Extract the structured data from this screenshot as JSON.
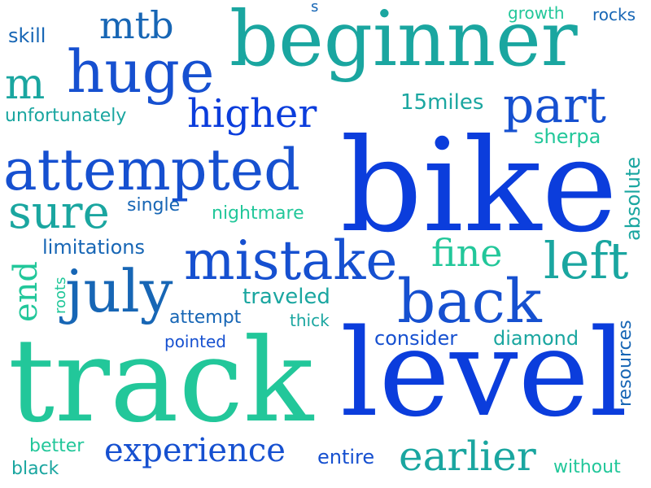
{
  "colors": {
    "blue": "#0b3ddc",
    "royal": "#1650d0",
    "steel": "#1766b5",
    "teal": "#1aa6a0",
    "mint": "#22c79a",
    "aqua": "#17b8a8"
  },
  "words": {
    "bike": {
      "text": "bike",
      "color": "#0b3ddc"
    },
    "track": {
      "text": "track",
      "color": "#22c79a"
    },
    "level": {
      "text": "level",
      "color": "#0b3ddc"
    },
    "beginner": {
      "text": "beginner",
      "color": "#1aa6a0"
    },
    "attempted": {
      "text": "attempted",
      "color": "#1650d0"
    },
    "huge": {
      "text": "huge",
      "color": "#1650d0"
    },
    "mistake": {
      "text": "mistake",
      "color": "#1650d0"
    },
    "back": {
      "text": "back",
      "color": "#1650d0"
    },
    "july": {
      "text": "july",
      "color": "#1766b5"
    },
    "left": {
      "text": "left",
      "color": "#1aa6a0"
    },
    "part": {
      "text": "part",
      "color": "#1650d0"
    },
    "sure": {
      "text": "sure",
      "color": "#1aa6a0"
    },
    "higher": {
      "text": "higher",
      "color": "#0b3ddc"
    },
    "earlier": {
      "text": "earlier",
      "color": "#1aa6a0"
    },
    "experience": {
      "text": "experience",
      "color": "#1650d0"
    },
    "m": {
      "text": "m",
      "color": "#1aa6a0"
    },
    "mtb": {
      "text": "mtb",
      "color": "#1766b5"
    },
    "fine": {
      "text": "fine",
      "color": "#22c79a"
    },
    "end": {
      "text": "end",
      "color": "#22c79a"
    },
    "unfortunately": {
      "text": "unfortunately",
      "color": "#1aa6a0"
    },
    "limitations": {
      "text": "limitations",
      "color": "#1766b5"
    },
    "fifteen_miles": {
      "text": "15miles",
      "color": "#1aa6a0"
    },
    "sherpa": {
      "text": "sherpa",
      "color": "#22c79a"
    },
    "absolute": {
      "text": "absolute",
      "color": "#1aa6a0"
    },
    "nightmare": {
      "text": "nightmare",
      "color": "#22c79a"
    },
    "single": {
      "text": "single",
      "color": "#1766b5"
    },
    "traveled": {
      "text": "traveled",
      "color": "#1aa6a0"
    },
    "attempt": {
      "text": "attempt",
      "color": "#1766b5"
    },
    "thick": {
      "text": "thick",
      "color": "#1aa6a0"
    },
    "pointed": {
      "text": "pointed",
      "color": "#1650d0"
    },
    "roots": {
      "text": "roots",
      "color": "#22c79a"
    },
    "consider": {
      "text": "consider",
      "color": "#1650d0"
    },
    "diamond": {
      "text": "diamond",
      "color": "#1aa6a0"
    },
    "resources": {
      "text": "resources",
      "color": "#1766b5"
    },
    "skill": {
      "text": "skill",
      "color": "#1766b5"
    },
    "s": {
      "text": "s",
      "color": "#1766b5"
    },
    "growth": {
      "text": "growth",
      "color": "#22c79a"
    },
    "rocks": {
      "text": "rocks",
      "color": "#1766b5"
    },
    "better": {
      "text": "better",
      "color": "#22c79a"
    },
    "black": {
      "text": "black",
      "color": "#1aa6a0"
    },
    "entire": {
      "text": "entire",
      "color": "#1650d0"
    },
    "without": {
      "text": "without",
      "color": "#22c79a"
    }
  }
}
